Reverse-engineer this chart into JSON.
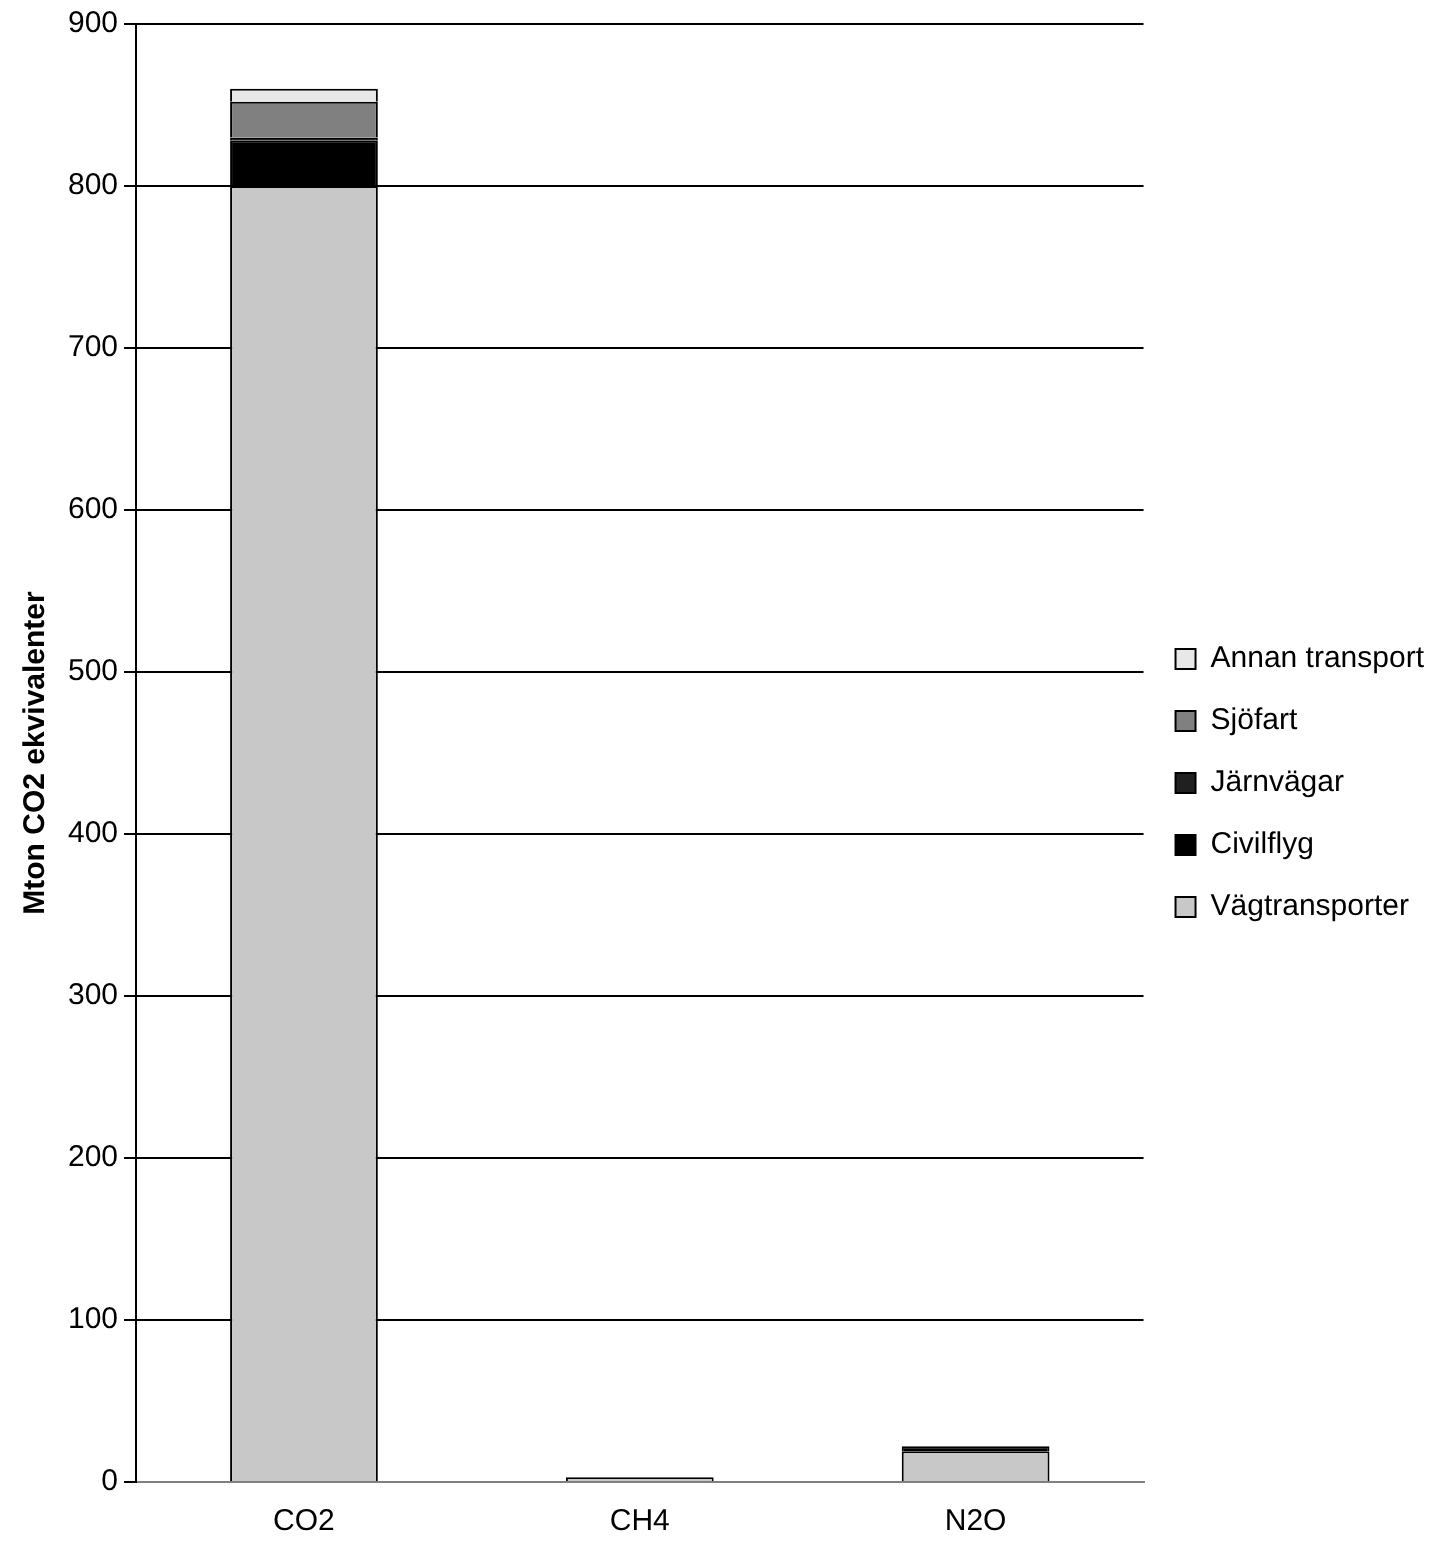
{
  "chart_data": {
    "type": "bar",
    "stacked": true,
    "ylabel": "Mton CO2 ekvivalenter",
    "categories": [
      "CO2",
      "CH4",
      "N2O"
    ],
    "series": [
      {
        "name": "Vägtransporter",
        "color": "#c8c8c8",
        "values": [
          800,
          3,
          19
        ]
      },
      {
        "name": "Civilflyg",
        "color": "#000000",
        "values": [
          28,
          0,
          3
        ]
      },
      {
        "name": "Järnvägar",
        "color": "#202020",
        "values": [
          2,
          0,
          0
        ]
      },
      {
        "name": "Sjöfart",
        "color": "#808080",
        "values": [
          22,
          0,
          0
        ]
      },
      {
        "name": "Annan transport",
        "color": "#e8e8e8",
        "values": [
          8,
          0,
          0
        ]
      }
    ],
    "ylim": [
      0,
      900
    ],
    "yticks": [
      0,
      100,
      200,
      300,
      400,
      500,
      600,
      700,
      800,
      900
    ],
    "grid": "y",
    "legend": "right"
  }
}
